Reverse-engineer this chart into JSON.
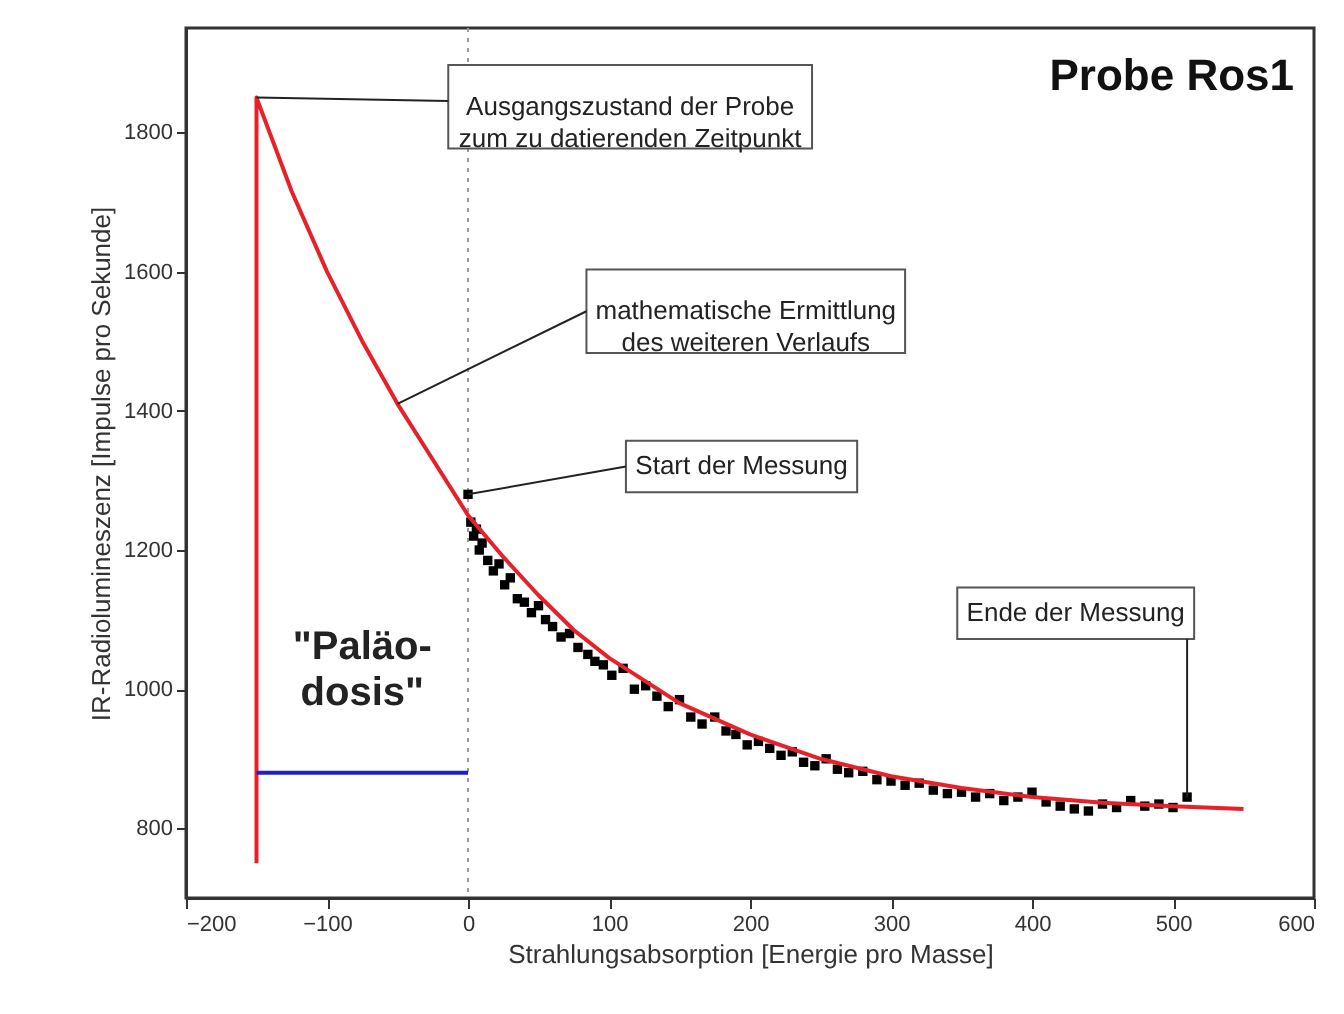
{
  "chart_data": {
    "type": "scatter",
    "title": "Probe Ros1",
    "xlabel": "Strahlungsabsorption [Energie pro Masse]",
    "ylabel": "IR-Radiolumineszenz [Impulse pro Sekunde]",
    "xlim": [
      -200,
      600
    ],
    "xticks": [
      -200,
      -100,
      0,
      100,
      200,
      300,
      400,
      500,
      600
    ],
    "ylim": [
      700,
      1950
    ],
    "yticks": [
      800,
      1000,
      1200,
      1400,
      1600,
      1800
    ],
    "grid": false,
    "series": [
      {
        "marker": "square",
        "color": "#000000",
        "x": [
          0,
          2,
          4,
          6,
          8,
          10,
          14,
          18,
          22,
          26,
          30,
          35,
          40,
          45,
          50,
          55,
          60,
          66,
          72,
          78,
          85,
          90,
          96,
          102,
          110,
          118,
          126,
          134,
          142,
          150,
          158,
          166,
          175,
          183,
          190,
          198,
          206,
          214,
          222,
          230,
          238,
          246,
          254,
          262,
          270,
          280,
          290,
          300,
          310,
          320,
          330,
          340,
          350,
          360,
          370,
          380,
          390,
          400,
          410,
          420,
          430,
          440,
          450,
          460,
          470,
          480,
          490,
          500,
          510
        ],
        "values": [
          1280,
          1240,
          1220,
          1230,
          1200,
          1210,
          1185,
          1170,
          1180,
          1150,
          1160,
          1130,
          1125,
          1110,
          1120,
          1100,
          1090,
          1075,
          1080,
          1060,
          1050,
          1040,
          1035,
          1020,
          1030,
          1000,
          1005,
          990,
          975,
          985,
          960,
          950,
          960,
          940,
          935,
          920,
          925,
          915,
          905,
          910,
          895,
          890,
          900,
          885,
          880,
          882,
          870,
          868,
          862,
          865,
          855,
          850,
          852,
          845,
          850,
          840,
          845,
          852,
          838,
          832,
          828,
          825,
          835,
          830,
          840,
          832,
          835,
          830,
          845
        ]
      },
      {
        "type": "line",
        "marker": "none",
        "color": "#e8202a",
        "x": [
          -150,
          -150,
          -125,
          -100,
          -75,
          -50,
          -25,
          0,
          25,
          50,
          75,
          100,
          150,
          200,
          250,
          300,
          350,
          400,
          450,
          500,
          550
        ],
        "values": [
          750,
          1850,
          1715,
          1600,
          1500,
          1410,
          1330,
          1250,
          1190,
          1135,
          1085,
          1045,
          980,
          935,
          900,
          875,
          858,
          845,
          837,
          832,
          828
        ]
      },
      {
        "type": "line",
        "marker": "none",
        "color": "#2020c0",
        "x": [
          -150,
          0
        ],
        "values": [
          880,
          880
        ]
      }
    ],
    "ref_lines": [
      {
        "axis": "x",
        "value": 0,
        "color": "#999999",
        "line_style": "dotted"
      }
    ],
    "annotations": [
      {
        "text": "Ausgangszustand der Probe\nzum zu datierenden Zeitpunkt",
        "x": -150,
        "y": 1850
      },
      {
        "text": "mathematische Ermittlung\ndes weiteren Verlaufs",
        "x": -50,
        "y": 1410
      },
      {
        "text": "Start der Messung",
        "x": 0,
        "y": 1280
      },
      {
        "text": "Ende der Messung",
        "x": 510,
        "y": 845
      },
      {
        "text": "\"Paläo-\ndosis\"",
        "x": -75,
        "y": 880
      }
    ]
  }
}
